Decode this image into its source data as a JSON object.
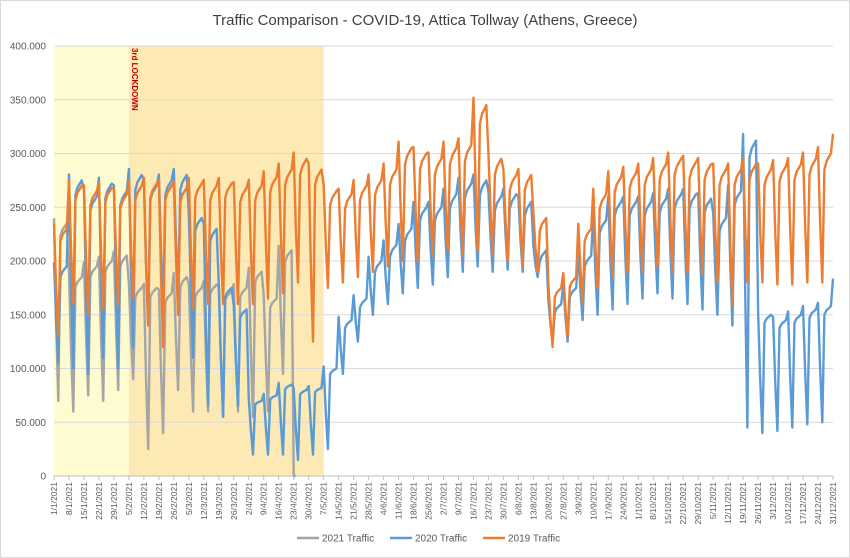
{
  "chart_data": {
    "type": "line",
    "title": "Traffic Comparison - COVID-19, Attica Tollway (Athens, Greece)",
    "xlabel": "",
    "ylabel": "",
    "ylim": [
      0,
      400000
    ],
    "yticks": [
      "0",
      "50.000",
      "100.000",
      "150.000",
      "200.000",
      "250.000",
      "300.000",
      "350.000",
      "400.000"
    ],
    "xtick_labels": [
      "1/1/2021",
      "8/1/2021",
      "15/1/2021",
      "22/1/2021",
      "29/1/2021",
      "5/2/2021",
      "12/2/2021",
      "19/2/2021",
      "26/2/2021",
      "5/3/2021",
      "12/3/2021",
      "19/3/2021",
      "26/3/2021",
      "2/4/2021",
      "9/4/2021",
      "16/4/2021",
      "23/4/2021",
      "30/4/2021",
      "7/5/2021",
      "14/5/2021",
      "21/5/2021",
      "28/5/2021",
      "4/6/2021",
      "11/6/2021",
      "18/6/2021",
      "25/6/2021",
      "2/7/2021",
      "9/7/2021",
      "16/7/2021",
      "23/7/2021",
      "30/7/2021",
      "6/8/2021",
      "13/8/2021",
      "20/8/2021",
      "27/8/2021",
      "3/9/2021",
      "10/9/2021",
      "17/9/2021",
      "24/9/2021",
      "1/10/2021",
      "8/10/2021",
      "15/10/2021",
      "22/10/2021",
      "29/10/2021",
      "5/11/2021",
      "12/11/2021",
      "19/11/2021",
      "26/11/2021",
      "3/12/2021",
      "10/12/2021",
      "17/12/2021",
      "24/12/2021",
      "31/12/2021"
    ],
    "grid": true,
    "legend_position": "bottom",
    "shaded_periods": [
      {
        "start_week": 0,
        "end_week": 5,
        "color": "#fffbd0"
      },
      {
        "start_week": 5,
        "end_week": 18,
        "color": "#fce9b4"
      }
    ],
    "annotations": [
      {
        "week": 5,
        "text": "3rd LOCKDOWN",
        "color": "#c00000"
      }
    ],
    "series": [
      {
        "name": "2021 Traffic",
        "color": "#a5a5a5",
        "weekly_weekday": [
          235000,
          185000,
          195000,
          200000,
          205000,
          175000,
          175000,
          170000,
          185000,
          175000,
          178000,
          172000,
          175000,
          190000,
          165000,
          210000,
          0
        ],
        "weekly_weekend": [
          70000,
          60000,
          75000,
          70000,
          80000,
          90000,
          25000,
          40000,
          80000,
          60000,
          60000,
          55000,
          60000,
          55000,
          60000,
          95000,
          0
        ],
        "days": 114
      },
      {
        "name": "2020 Traffic",
        "color": "#5b9bd5",
        "weekly_weekday": [
          195000,
          275000,
          260000,
          272000,
          265000,
          280000,
          270000,
          275000,
          280000,
          240000,
          230000,
          175000,
          155000,
          70000,
          75000,
          85000,
          80000,
          82000,
          100000,
          145000,
          165000,
          200000,
          215000,
          230000,
          250000,
          250000,
          262000,
          272000,
          275000,
          260000,
          262000,
          255000,
          210000,
          160000,
          175000,
          205000,
          238000,
          255000,
          255000,
          255000,
          258000,
          262000,
          262000,
          258000,
          240000,
          265000,
          312000,
          150000,
          145000,
          150000,
          155000,
          158000,
          180000
        ],
        "weekly_weekend": [
          105000,
          100000,
          95000,
          110000,
          100000,
          120000,
          140000,
          155000,
          170000,
          110000,
          65000,
          55000,
          65000,
          20000,
          20000,
          20000,
          15000,
          20000,
          25000,
          95000,
          125000,
          150000,
          160000,
          170000,
          175000,
          178000,
          185000,
          190000,
          195000,
          190000,
          192000,
          190000,
          185000,
          125000,
          125000,
          145000,
          150000,
          155000,
          160000,
          165000,
          170000,
          165000,
          160000,
          155000,
          150000,
          140000,
          45000,
          40000,
          42000,
          45000,
          48000,
          50000,
          68000
        ],
        "days": 365
      },
      {
        "name": "2019 Traffic",
        "color": "#ed7d31",
        "weekly_weekday": [
          230000,
          270000,
          265000,
          268000,
          262000,
          270000,
          272000,
          270000,
          268000,
          272000,
          270000,
          272000,
          268000,
          270000,
          278000,
          285000,
          295000,
          285000,
          265000,
          262000,
          270000,
          275000,
          285000,
          305000,
          300000,
          295000,
          305000,
          308000,
          345000,
          295000,
          280000,
          280000,
          240000,
          175000,
          185000,
          230000,
          262000,
          278000,
          282000,
          285000,
          290000,
          295000,
          292000,
          290000,
          285000,
          285000,
          290000,
          285000,
          288000,
          290000,
          295000,
          300000,
          312000
        ],
        "weekly_weekend": [
          130000,
          160000,
          150000,
          155000,
          160000,
          165000,
          140000,
          120000,
          150000,
          155000,
          160000,
          160000,
          160000,
          160000,
          165000,
          170000,
          180000,
          125000,
          175000,
          180000,
          185000,
          190000,
          195000,
          200000,
          200000,
          205000,
          210000,
          205000,
          210000,
          205000,
          200000,
          195000,
          190000,
          120000,
          130000,
          160000,
          175000,
          185000,
          190000,
          190000,
          195000,
          190000,
          190000,
          188000,
          180000,
          160000,
          180000,
          180000,
          178000,
          178000,
          180000,
          180000,
          185000
        ],
        "days": 365
      }
    ]
  }
}
